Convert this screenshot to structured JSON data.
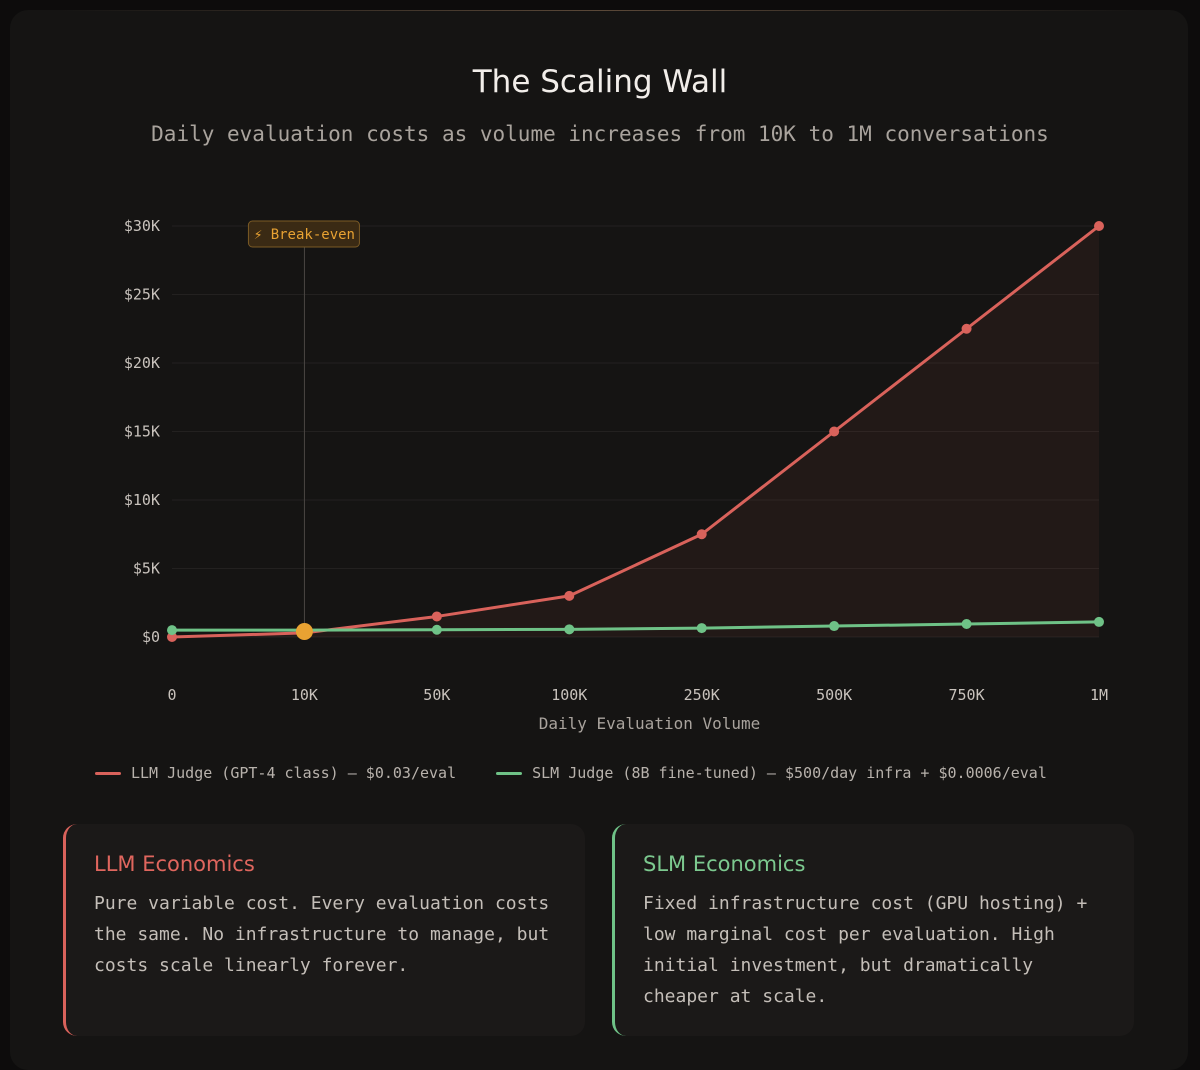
{
  "page": {
    "title": "The Scaling Wall",
    "subtitle": "Daily evaluation costs as volume increases from 10K to 1M conversations"
  },
  "colors": {
    "llm": "#d9625b",
    "slm": "#6fc287",
    "breakeven": "#e8a232",
    "background": "#151413"
  },
  "chart_data": {
    "type": "line",
    "title": "The Scaling Wall",
    "subtitle": "Daily evaluation costs as volume increases from 10K to 1M conversations",
    "xlabel": "Daily Evaluation Volume",
    "ylabel": "",
    "categories": [
      "0",
      "10K",
      "50K",
      "100K",
      "250K",
      "500K",
      "750K",
      "1M"
    ],
    "y_ticks": [
      "$0",
      "$5K",
      "$10K",
      "$15K",
      "$20K",
      "$25K",
      "$30K"
    ],
    "ylim": [
      0,
      30000
    ],
    "grid": true,
    "legend_position": "bottom",
    "series": [
      {
        "name": "LLM Judge (GPT-4 class) — $0.03/eval",
        "color": "#d9625b",
        "values": [
          0,
          300,
          1500,
          3000,
          7500,
          15000,
          22500,
          30000
        ],
        "area_fill": true
      },
      {
        "name": "SLM Judge (8B fine-tuned) — $500/day infra + $0.0006/eval",
        "color": "#6fc287",
        "values": [
          500,
          506,
          530,
          560,
          650,
          800,
          950,
          1100
        ]
      }
    ],
    "annotation": {
      "label": "⚡ Break-even",
      "category": "10K",
      "value": 400
    }
  },
  "economics": {
    "llm": {
      "title": "LLM Economics",
      "text": "Pure variable cost. Every evaluation costs the same. No infrastructure to manage, but costs scale linearly forever."
    },
    "slm": {
      "title": "SLM Economics",
      "text": "Fixed infrastructure cost (GPU hosting) + low marginal cost per evaluation. High initial investment, but dramatically cheaper at scale."
    }
  }
}
